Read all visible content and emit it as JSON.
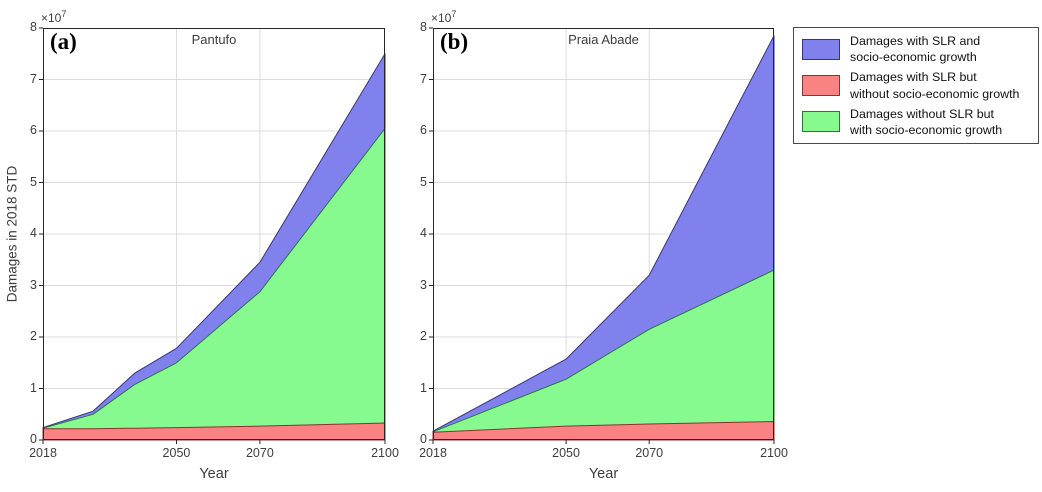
{
  "figure": {
    "y_exponent_base": "×10",
    "y_exponent_power": "7"
  },
  "legend": {
    "items": [
      {
        "label_line1": "Damages with SLR and",
        "label_line2": "socio-economic growth",
        "fill": "#8181ed",
        "edge": "#33338a"
      },
      {
        "label_line1": "Damages with SLR but",
        "label_line2": "without socio-economic growth",
        "fill": "#f98383",
        "edge": "#8a3333"
      },
      {
        "label_line1": "Damages without SLR but",
        "label_line2": "with socio-economic growth",
        "fill": "#86fa8e",
        "edge": "#267a33"
      }
    ]
  },
  "chart_data": [
    {
      "type": "area",
      "panel_label": "(a)",
      "title": "Pantufo",
      "xlabel": "Year",
      "ylabel": "Damages in 2018 STD",
      "xlim": [
        2018,
        2100
      ],
      "ylim": [
        0,
        80000000
      ],
      "x_ticks": [
        2018,
        2050,
        2070,
        2100
      ],
      "y_ticks": [
        0,
        1,
        2,
        3,
        4,
        5,
        6,
        7,
        8
      ],
      "y_tick_scale": 10000000,
      "grid": true,
      "legend_position": "outside-right",
      "draw_order": [
        0,
        2,
        1
      ],
      "series": [
        {
          "name": "Damages with SLR and socio-economic growth",
          "fill": "#8181ed",
          "edge": "#33338a",
          "points": [
            [
              2018,
              2400000
            ],
            [
              2030,
              5600000
            ],
            [
              2040,
              13000000
            ],
            [
              2050,
              17800000
            ],
            [
              2070,
              34500000
            ],
            [
              2100,
              75000000
            ]
          ]
        },
        {
          "name": "Damages with SLR but without socio-economic growth",
          "fill": "#f98383",
          "edge": "#8a3333",
          "points": [
            [
              2018,
              2200000
            ],
            [
              2030,
              2200000
            ],
            [
              2040,
              2300000
            ],
            [
              2050,
              2400000
            ],
            [
              2070,
              2700000
            ],
            [
              2100,
              3300000
            ]
          ]
        },
        {
          "name": "Damages without SLR but with socio-economic growth",
          "fill": "#86fa8e",
          "edge": "#267a33",
          "points": [
            [
              2018,
              2300000
            ],
            [
              2030,
              5000000
            ],
            [
              2040,
              10800000
            ],
            [
              2050,
              15000000
            ],
            [
              2070,
              28800000
            ],
            [
              2100,
              60500000
            ]
          ]
        }
      ]
    },
    {
      "type": "area",
      "panel_label": "(b)",
      "title": "Praia Abade",
      "xlabel": "Year",
      "ylabel": "",
      "xlim": [
        2018,
        2100
      ],
      "ylim": [
        0,
        80000000
      ],
      "x_ticks": [
        2018,
        2050,
        2070,
        2100
      ],
      "y_ticks": [
        0,
        1,
        2,
        3,
        4,
        5,
        6,
        7,
        8
      ],
      "y_tick_scale": 10000000,
      "grid": true,
      "legend_position": "outside-right",
      "draw_order": [
        0,
        2,
        1
      ],
      "series": [
        {
          "name": "Damages with SLR and socio-economic growth",
          "fill": "#8181ed",
          "edge": "#33338a",
          "points": [
            [
              2018,
              1700000
            ],
            [
              2050,
              15700000
            ],
            [
              2070,
              32000000
            ],
            [
              2100,
              78500000
            ]
          ]
        },
        {
          "name": "Damages with SLR but without socio-economic growth",
          "fill": "#f98383",
          "edge": "#8a3333",
          "points": [
            [
              2018,
              1500000
            ],
            [
              2050,
              2700000
            ],
            [
              2070,
              3100000
            ],
            [
              2100,
              3600000
            ]
          ]
        },
        {
          "name": "Damages without SLR but with socio-economic growth",
          "fill": "#86fa8e",
          "edge": "#267a33",
          "points": [
            [
              2018,
              1600000
            ],
            [
              2050,
              11800000
            ],
            [
              2070,
              21500000
            ],
            [
              2100,
              33000000
            ]
          ]
        }
      ]
    }
  ]
}
